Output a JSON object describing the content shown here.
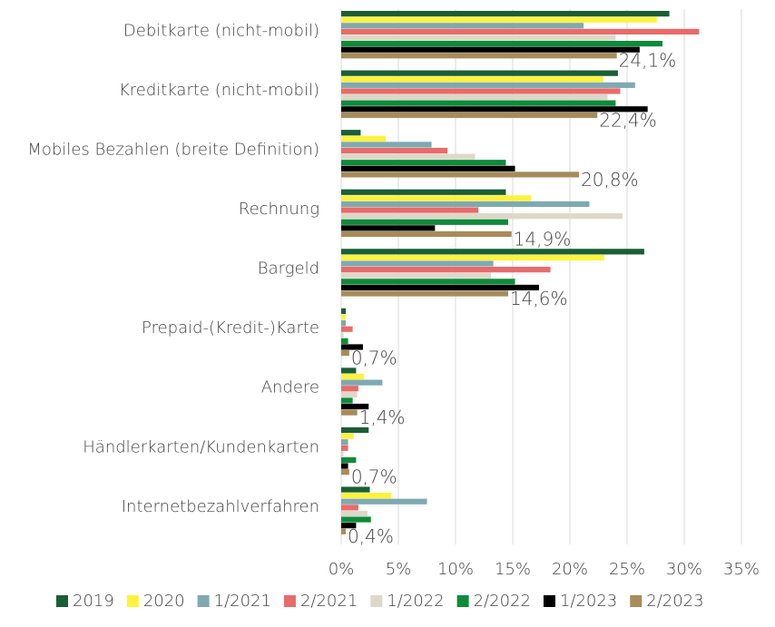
{
  "chart_data": {
    "type": "hbar",
    "categories": [
      "Debitkarte (nicht-mobil)",
      "Kreditkarte (nicht-mobil)",
      "Mobiles Bezahlen (breite Definition)",
      "Rechnung",
      "Bargeld",
      "Prepaid-(Kredit-)Karte",
      "Andere",
      "Händlerkarten/Kundenkarten",
      "Internetbezahlverfahren"
    ],
    "series": [
      {
        "name": "2019",
        "color": "#1a5e36",
        "values": [
          28.7,
          24.2,
          1.7,
          14.4,
          26.5,
          0.4,
          1.3,
          2.4,
          2.5
        ]
      },
      {
        "name": "2020",
        "color": "#fff23d",
        "values": [
          27.6,
          22.9,
          3.9,
          16.6,
          23.0,
          0.4,
          2.0,
          1.1,
          4.4
        ]
      },
      {
        "name": "1/2021",
        "color": "#7fa9b0",
        "values": [
          21.2,
          25.7,
          7.9,
          21.7,
          13.3,
          0.4,
          3.6,
          0.6,
          7.5
        ]
      },
      {
        "name": "2/2021",
        "color": "#e86b6b",
        "values": [
          31.3,
          24.4,
          9.3,
          12.0,
          18.3,
          1.0,
          1.5,
          0.6,
          1.5
        ]
      },
      {
        "name": "1/2022",
        "color": "#ddd8c8",
        "values": [
          24.0,
          23.3,
          11.7,
          24.6,
          13.1,
          0.2,
          1.4,
          0.2,
          2.3
        ]
      },
      {
        "name": "2/2022",
        "color": "#0f8a3a",
        "values": [
          28.1,
          24.0,
          14.4,
          14.6,
          15.2,
          0.6,
          1.0,
          1.3,
          2.6
        ]
      },
      {
        "name": "1/2023",
        "color": "#000000",
        "values": [
          26.1,
          26.8,
          15.2,
          8.2,
          17.3,
          1.9,
          2.4,
          0.6,
          1.3
        ]
      },
      {
        "name": "2/2023",
        "color": "#a68c5a",
        "values": [
          24.1,
          22.4,
          20.8,
          14.9,
          14.6,
          0.7,
          1.4,
          0.7,
          0.4
        ],
        "value_labels": [
          "24,1%",
          "22,4%",
          "20,8%",
          "14,9%",
          "14,6%",
          "0,7%",
          "1,4%",
          "0,7%",
          "0,4%"
        ]
      }
    ],
    "xlim": [
      0,
      35
    ],
    "xticks": [
      {
        "value": 0,
        "label": "0%"
      },
      {
        "value": 5,
        "label": "5%"
      },
      {
        "value": 10,
        "label": "10%"
      },
      {
        "value": 15,
        "label": "15%"
      },
      {
        "value": 20,
        "label": "20%"
      },
      {
        "value": 25,
        "label": "25%"
      },
      {
        "value": 30,
        "label": "30%"
      },
      {
        "value": 35,
        "label": "35%"
      }
    ],
    "grid": true,
    "legend": "bottom"
  }
}
